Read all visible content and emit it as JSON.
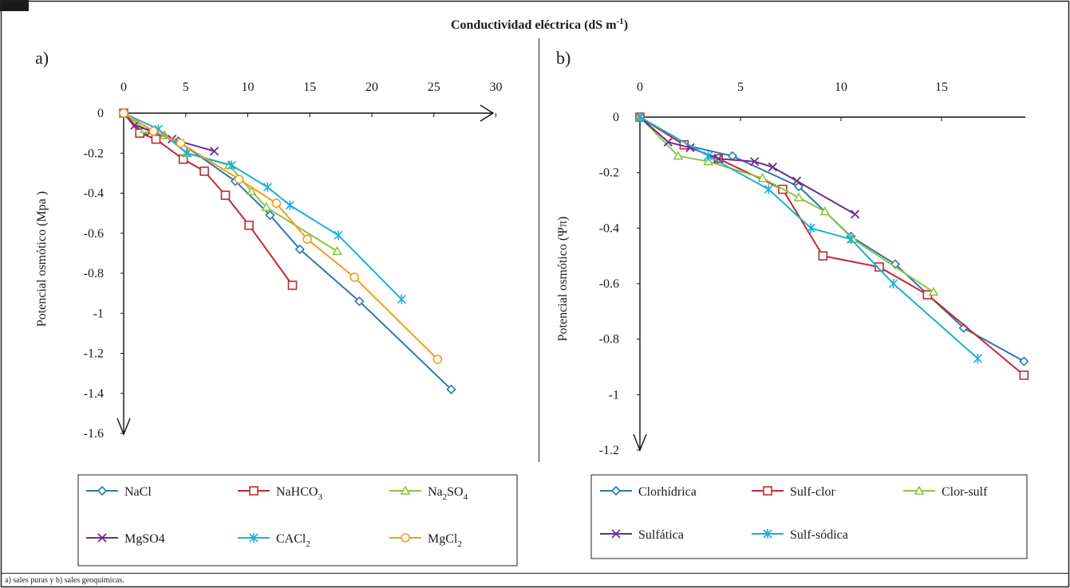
{
  "header": {
    "title": "Conductividad eléctrica (dS m",
    "title_sup": "-1",
    "title_end": ")"
  },
  "caption": "a) sales puras y b) sales geoquímicas.",
  "chart_data": [
    {
      "type": "line",
      "panel_label": "a)",
      "ylabel": "Potencial osmótico (Mpa )",
      "xlim": [
        0,
        30
      ],
      "ylim": [
        -1.6,
        0
      ],
      "x_ticks": [
        "0",
        "5",
        "10",
        "15",
        "20",
        "25",
        "30"
      ],
      "y_ticks": [
        "0",
        "-0.2",
        "-0.4",
        "-0.6",
        "-0.8",
        "-1",
        "-1.2",
        "-1.4",
        "-1.6"
      ],
      "legend_position": "bottom",
      "series": [
        {
          "name": "NaCl",
          "sub": "",
          "tail": "",
          "color": "#2e75b6",
          "marker": "diamond",
          "points": [
            [
              0,
              0
            ],
            [
              1.9,
              -0.09
            ],
            [
              4.4,
              -0.14
            ],
            [
              9,
              -0.34
            ],
            [
              11.8,
              -0.51
            ],
            [
              14.2,
              -0.68
            ],
            [
              19,
              -0.94
            ],
            [
              26.4,
              -1.38
            ]
          ]
        },
        {
          "name": "NaHCO",
          "sub": "3",
          "tail": "",
          "color": "#c0292e",
          "marker": "square",
          "points": [
            [
              0,
              0
            ],
            [
              1.3,
              -0.1
            ],
            [
              2.6,
              -0.13
            ],
            [
              4.8,
              -0.23
            ],
            [
              6.5,
              -0.29
            ],
            [
              8.2,
              -0.41
            ],
            [
              10.1,
              -0.56
            ],
            [
              13.6,
              -0.86
            ]
          ]
        },
        {
          "name": "Na",
          "sub": "2",
          "tail": "SO",
          "tail_sub": "4",
          "color": "#8dc63f",
          "marker": "triangle",
          "points": [
            [
              0,
              0
            ],
            [
              1.7,
              -0.08
            ],
            [
              3.3,
              -0.11
            ],
            [
              5.1,
              -0.2
            ],
            [
              8.5,
              -0.26
            ],
            [
              10.3,
              -0.39
            ],
            [
              11.5,
              -0.47
            ],
            [
              17.2,
              -0.69
            ]
          ]
        },
        {
          "name": "MgSO4",
          "sub": "",
          "tail": "",
          "color": "#6a2c91",
          "marker": "x",
          "points": [
            [
              0,
              0
            ],
            [
              0.9,
              -0.06
            ],
            [
              2.2,
              -0.09
            ],
            [
              3.9,
              -0.13
            ],
            [
              7.3,
              -0.19
            ]
          ]
        },
        {
          "name": "CACl",
          "sub": "2",
          "tail": "",
          "color": "#1ab0d8",
          "marker": "star",
          "points": [
            [
              0,
              0
            ],
            [
              2.8,
              -0.08
            ],
            [
              5.1,
              -0.2
            ],
            [
              8.7,
              -0.26
            ],
            [
              11.6,
              -0.37
            ],
            [
              13.4,
              -0.46
            ],
            [
              17.3,
              -0.61
            ],
            [
              22.4,
              -0.93
            ]
          ]
        },
        {
          "name": "MgCl",
          "sub": "2",
          "tail": "",
          "color": "#f39c1f",
          "marker": "circle",
          "points": [
            [
              0,
              0
            ],
            [
              2.4,
              -0.09
            ],
            [
              4.6,
              -0.15
            ],
            [
              9.3,
              -0.33
            ],
            [
              12.3,
              -0.45
            ],
            [
              14.8,
              -0.63
            ],
            [
              18.6,
              -0.82
            ],
            [
              25.3,
              -1.23
            ]
          ]
        }
      ]
    },
    {
      "type": "line",
      "panel_label": "b)",
      "ylabel": "Potencial osmótico (Ψπ)",
      "xlim": [
        0,
        19
      ],
      "ylim": [
        -1.2,
        0
      ],
      "x_ticks": [
        "0",
        "5",
        "10",
        "15"
      ],
      "y_ticks": [
        "0",
        "-0.2",
        "-0.4",
        "-0.6",
        "-0.8",
        "-1",
        "-1.2"
      ],
      "legend_position": "bottom",
      "series": [
        {
          "name": "Clorhídrica",
          "color": "#2e75b6",
          "marker": "diamond",
          "points": [
            [
              0,
              0
            ],
            [
              2.2,
              -0.1
            ],
            [
              4.6,
              -0.14
            ],
            [
              7.9,
              -0.25
            ],
            [
              10.5,
              -0.43
            ],
            [
              12.7,
              -0.53
            ],
            [
              16.1,
              -0.76
            ],
            [
              19.1,
              -0.88
            ]
          ]
        },
        {
          "name": "Sulf-clor",
          "color": "#c0292e",
          "marker": "square",
          "points": [
            [
              0,
              0
            ],
            [
              2.2,
              -0.1
            ],
            [
              3.9,
              -0.15
            ],
            [
              7.1,
              -0.26
            ],
            [
              9.1,
              -0.5
            ],
            [
              11.9,
              -0.54
            ],
            [
              14.3,
              -0.64
            ],
            [
              19.1,
              -0.93
            ]
          ]
        },
        {
          "name": "Clor-sulf",
          "color": "#8dc63f",
          "marker": "triangle",
          "points": [
            [
              0,
              0
            ],
            [
              1.9,
              -0.14
            ],
            [
              3.4,
              -0.16
            ],
            [
              6.1,
              -0.22
            ],
            [
              7.9,
              -0.29
            ],
            [
              9.2,
              -0.34
            ],
            [
              10.6,
              -0.44
            ],
            [
              14.6,
              -0.63
            ]
          ]
        },
        {
          "name": "Sulfática",
          "color": "#6a2c91",
          "marker": "x",
          "points": [
            [
              0,
              0
            ],
            [
              1.4,
              -0.09
            ],
            [
              2.5,
              -0.11
            ],
            [
              3.9,
              -0.15
            ],
            [
              5.7,
              -0.16
            ],
            [
              6.6,
              -0.18
            ],
            [
              7.8,
              -0.23
            ],
            [
              10.7,
              -0.35
            ]
          ]
        },
        {
          "name": "Sulf-sódica",
          "color": "#1ab0d8",
          "marker": "star",
          "points": [
            [
              0,
              0
            ],
            [
              3.4,
              -0.14
            ],
            [
              6.4,
              -0.26
            ],
            [
              8.5,
              -0.4
            ],
            [
              10.5,
              -0.44
            ],
            [
              12.6,
              -0.6
            ],
            [
              16.8,
              -0.87
            ]
          ]
        }
      ]
    }
  ]
}
